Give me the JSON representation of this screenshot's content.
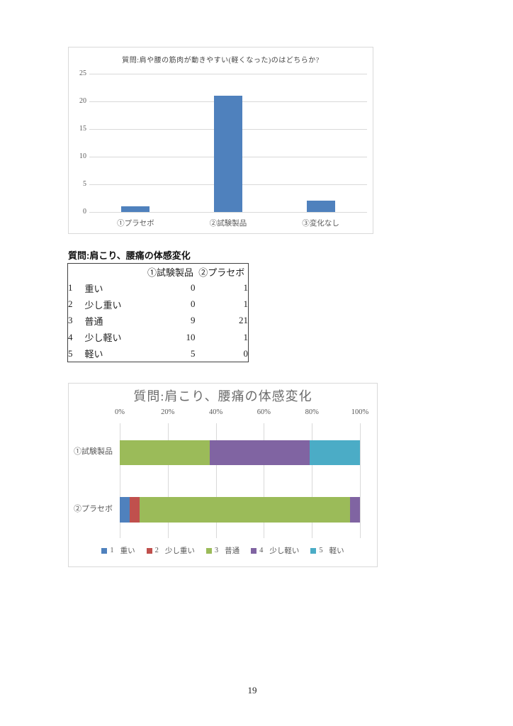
{
  "page_number": "19",
  "table": {
    "heading": "質問:肩こり、腰痛の体感変化",
    "col_headers": [
      "①試験製品",
      "②プラセボ"
    ],
    "rows": [
      {
        "no": "1",
        "label": "重い",
        "values": [
          "0",
          "1"
        ]
      },
      {
        "no": "2",
        "label": "少し重い",
        "values": [
          "0",
          "1"
        ]
      },
      {
        "no": "3",
        "label": "普通",
        "values": [
          "9",
          "21"
        ]
      },
      {
        "no": "4",
        "label": "少し軽い",
        "values": [
          "10",
          "1"
        ]
      },
      {
        "no": "5",
        "label": "軽い",
        "values": [
          "5",
          "0"
        ]
      }
    ]
  },
  "chart_data": [
    {
      "type": "bar",
      "title": "質問:肩や腰の筋肉が動きやすい(軽くなった)のはどちらか?",
      "categories": [
        "①プラセボ",
        "②試験製品",
        "③変化なし"
      ],
      "values": [
        1,
        21,
        2
      ],
      "ylim": [
        0,
        25
      ],
      "yticks": [
        0,
        5,
        10,
        15,
        20,
        25
      ],
      "grid": true,
      "legend": false,
      "bar_color": "#4f81bd"
    },
    {
      "type": "bar",
      "orientation": "horizontal",
      "stacked": true,
      "percent_axis": true,
      "title": "質問:肩こり、腰痛の体感変化",
      "categories": [
        "①試験製品",
        "②プラセボ"
      ],
      "series": [
        {
          "name": "1 重い",
          "color": "#4f81bd",
          "values": [
            0,
            1
          ]
        },
        {
          "name": "2 少し重い",
          "color": "#c0504d",
          "values": [
            0,
            1
          ]
        },
        {
          "name": "3 普通",
          "color": "#9bbb59",
          "values": [
            9,
            21
          ]
        },
        {
          "name": "4 少し軽い",
          "color": "#8064a2",
          "values": [
            10,
            1
          ]
        },
        {
          "name": "5 軽い",
          "color": "#4bacc6",
          "values": [
            5,
            0
          ]
        }
      ],
      "xticks": [
        "0%",
        "20%",
        "40%",
        "60%",
        "80%",
        "100%"
      ],
      "xlim": [
        0,
        100
      ],
      "grid": true,
      "legend_position": "bottom"
    }
  ],
  "colors": {
    "gridline": "#d9d9d9",
    "chart_border": "#d9d9d9",
    "axis_text": "#595959"
  }
}
